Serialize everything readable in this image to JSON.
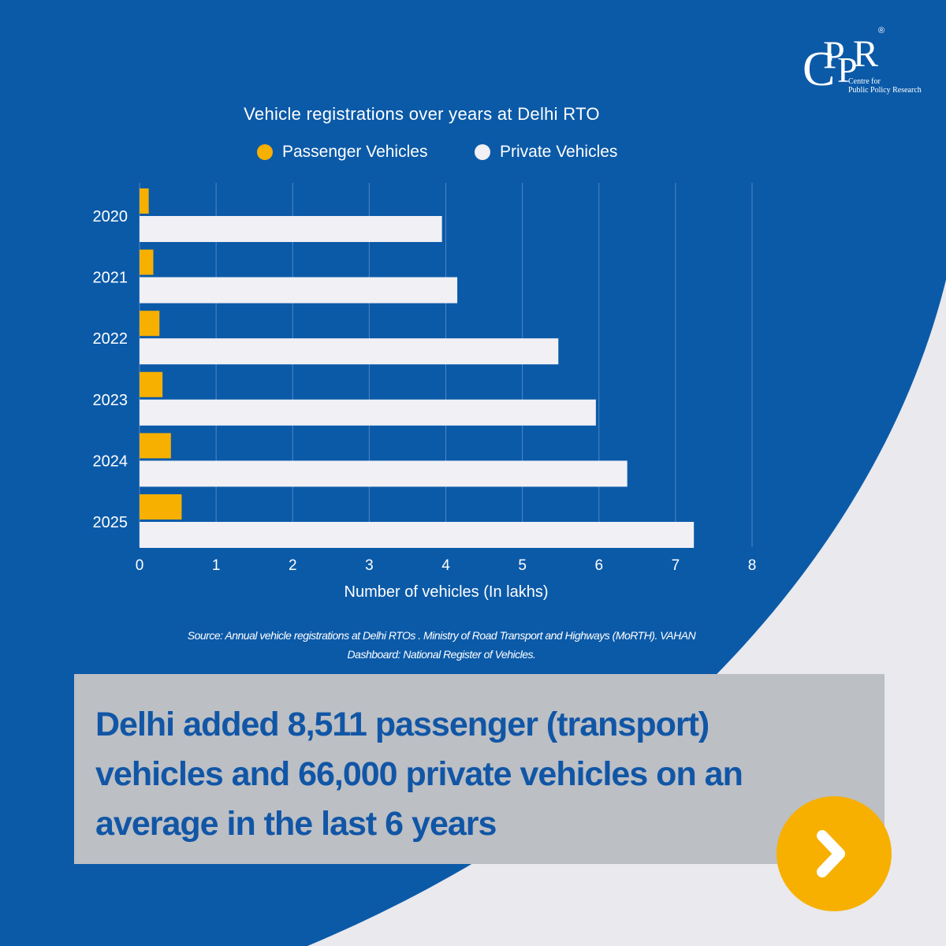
{
  "brand": {
    "logo_text": "CPPR",
    "tagline_1": "Centre for",
    "tagline_2": "Public Policy Research",
    "registered_mark": "®"
  },
  "chart_data": {
    "type": "bar",
    "orientation": "horizontal",
    "title": "Vehicle registrations over years at Delhi RTO",
    "categories": [
      "2020",
      "2021",
      "2022",
      "2023",
      "2024",
      "2025"
    ],
    "series": [
      {
        "name": "Passenger Vehicles",
        "color": "#f7b000",
        "values": [
          0.12,
          0.18,
          0.26,
          0.3,
          0.41,
          0.55
        ]
      },
      {
        "name": "Private Vehicles",
        "color": "#f0f0f5",
        "values": [
          3.95,
          4.15,
          5.47,
          5.96,
          6.37,
          7.24
        ]
      }
    ],
    "xlabel": "Number of vehicles (In lakhs)",
    "xlim": [
      0,
      8
    ],
    "xticks": [
      "0",
      "1",
      "2",
      "3",
      "4",
      "5",
      "6",
      "7",
      "8"
    ],
    "grid": "vertical",
    "legend": "top-center"
  },
  "source": {
    "line1": "Source: Annual vehicle registrations  at Delhi RTOs . Ministry of Road Transport and Highways (MoRTH). VAHAN",
    "line2": "Dashboard: National Register of Vehicles."
  },
  "callout": {
    "line1": "Delhi added  8,511 passenger (transport)",
    "line2": "vehicles and 66,000 private vehicles on an",
    "line3": "average in the last 6 years"
  },
  "colors": {
    "background": "#0b5aa8",
    "accent": "#f7b000",
    "callout_bg": "#bcbfc4",
    "callout_text": "#1156a6"
  },
  "next_button": {
    "icon": "chevron-right-icon"
  }
}
